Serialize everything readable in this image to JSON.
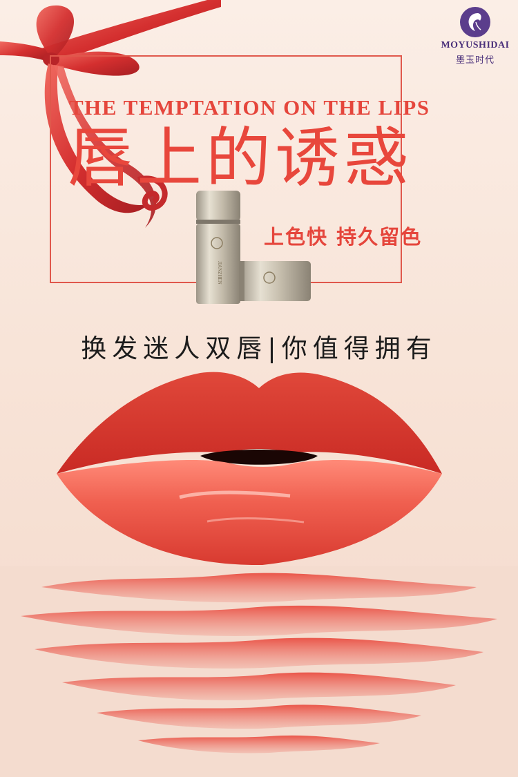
{
  "brand": {
    "name": "MOYUSHIDAI",
    "name_cn": "墨玉时代",
    "logo_icon": "woman-silhouette-icon"
  },
  "headline": {
    "english": "THE TEMPTATION ON THE LIPS",
    "chinese": "唇上的诱惑"
  },
  "subtitle": "上色快 持久留色",
  "tagline": "换发迷人双唇|你值得拥有",
  "colors": {
    "accent": "#e5463c",
    "ribbon": "#d93c3a",
    "logo": "#4a2f7a",
    "lips": "#e23a2e",
    "background": "#fbeee6"
  }
}
